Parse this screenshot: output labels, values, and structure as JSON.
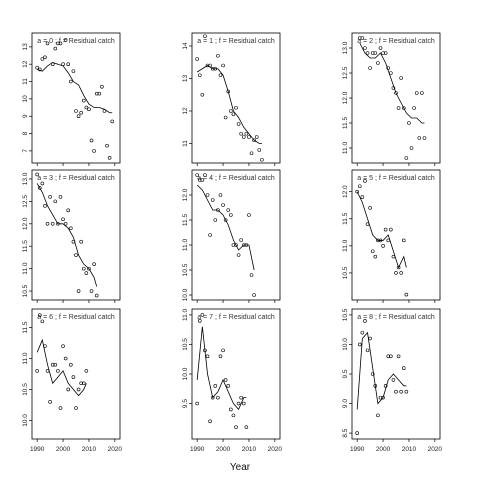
{
  "xlabel": "Year",
  "chart_data": [
    {
      "type": "scatter",
      "title": "a = 0  ;  f = Residual catch",
      "xlim": [
        1988,
        2022
      ],
      "ylim": [
        6.3,
        13.8
      ],
      "yticks": [
        7,
        8,
        9,
        10,
        11,
        12,
        13
      ],
      "points": [
        [
          1990,
          11.8
        ],
        [
          1991,
          11.7
        ],
        [
          1992,
          12.3
        ],
        [
          1993,
          12.4
        ],
        [
          1994,
          13.2
        ],
        [
          1996,
          12.0
        ],
        [
          1997,
          12.9
        ],
        [
          1998,
          13.2
        ],
        [
          1999,
          13.2
        ],
        [
          2000,
          12.0
        ],
        [
          2001,
          13.4
        ],
        [
          2002,
          12.0
        ],
        [
          2003,
          11.0
        ],
        [
          2004,
          11.6
        ],
        [
          2005,
          9.3
        ],
        [
          2006,
          9.0
        ],
        [
          2007,
          9.2
        ],
        [
          2008,
          9.9
        ],
        [
          2009,
          9.5
        ],
        [
          2010,
          9.4
        ],
        [
          2011,
          7.6
        ],
        [
          2012,
          7.0
        ],
        [
          2013,
          10.3
        ],
        [
          2014,
          10.3
        ],
        [
          2015,
          10.7
        ],
        [
          2016,
          9.3
        ],
        [
          2017,
          7.3
        ],
        [
          2018,
          6.6
        ],
        [
          2019,
          8.7
        ]
      ],
      "fit": [
        [
          1990,
          11.7
        ],
        [
          1992,
          11.6
        ],
        [
          1994,
          11.9
        ],
        [
          1996,
          12.1
        ],
        [
          1998,
          12.0
        ],
        [
          2000,
          11.9
        ],
        [
          2002,
          11.5
        ],
        [
          2004,
          11.0
        ],
        [
          2006,
          10.8
        ],
        [
          2008,
          10.2
        ],
        [
          2010,
          9.7
        ],
        [
          2012,
          9.5
        ],
        [
          2014,
          9.5
        ],
        [
          2016,
          9.4
        ],
        [
          2018,
          9.2
        ],
        [
          2019,
          9.2
        ]
      ]
    },
    {
      "type": "scatter",
      "title": "a = 1  ;  f = Residual catch",
      "xlim": [
        1988,
        2022
      ],
      "ylim": [
        10.4,
        14.4
      ],
      "yticks": [
        11,
        12,
        13,
        14
      ],
      "points": [
        [
          1990,
          13.6
        ],
        [
          1991,
          13.1
        ],
        [
          1992,
          12.5
        ],
        [
          1993,
          14.3
        ],
        [
          1994,
          13.4
        ],
        [
          1995,
          13.4
        ],
        [
          1996,
          13.3
        ],
        [
          1997,
          13.3
        ],
        [
          1998,
          13.7
        ],
        [
          1999,
          13.1
        ],
        [
          2000,
          13.4
        ],
        [
          2001,
          11.8
        ],
        [
          2002,
          12.6
        ],
        [
          2003,
          12.0
        ],
        [
          2004,
          11.9
        ],
        [
          2005,
          12.1
        ],
        [
          2006,
          11.6
        ],
        [
          2007,
          11.3
        ],
        [
          2008,
          11.2
        ],
        [
          2009,
          11.3
        ],
        [
          2010,
          11.2
        ],
        [
          2011,
          10.7
        ],
        [
          2012,
          11.1
        ],
        [
          2013,
          11.2
        ],
        [
          2014,
          10.8
        ],
        [
          2015,
          10.5
        ]
      ],
      "fit": [
        [
          1990,
          13.2
        ],
        [
          1992,
          13.3
        ],
        [
          1994,
          13.4
        ],
        [
          1996,
          13.3
        ],
        [
          1998,
          13.3
        ],
        [
          2000,
          13.1
        ],
        [
          2002,
          12.6
        ],
        [
          2004,
          12.0
        ],
        [
          2006,
          11.8
        ],
        [
          2008,
          11.5
        ],
        [
          2010,
          11.3
        ],
        [
          2012,
          11.1
        ],
        [
          2014,
          11.0
        ],
        [
          2015,
          11.0
        ]
      ]
    },
    {
      "type": "scatter",
      "title": "a = 2  ;  f = Residual catch",
      "xlim": [
        1988,
        2022
      ],
      "ylim": [
        10.7,
        13.3
      ],
      "yticks": [
        11.0,
        11.5,
        12.0,
        12.5,
        13.0
      ],
      "points": [
        [
          1991,
          13.2
        ],
        [
          1992,
          13.2
        ],
        [
          1993,
          13.0
        ],
        [
          1994,
          12.9
        ],
        [
          1995,
          12.6
        ],
        [
          1996,
          12.9
        ],
        [
          1997,
          12.9
        ],
        [
          1998,
          12.7
        ],
        [
          1999,
          13.0
        ],
        [
          2000,
          12.9
        ],
        [
          2001,
          12.9
        ],
        [
          2002,
          12.6
        ],
        [
          2003,
          12.5
        ],
        [
          2004,
          12.2
        ],
        [
          2005,
          12.1
        ],
        [
          2006,
          11.8
        ],
        [
          2007,
          12.4
        ],
        [
          2008,
          11.8
        ],
        [
          2009,
          10.8
        ],
        [
          2010,
          11.5
        ],
        [
          2011,
          11.0
        ],
        [
          2012,
          11.8
        ],
        [
          2013,
          12.1
        ],
        [
          2014,
          11.2
        ],
        [
          2015,
          12.1
        ],
        [
          2016,
          11.2
        ]
      ],
      "fit": [
        [
          1991,
          13.1
        ],
        [
          1993,
          12.9
        ],
        [
          1995,
          12.8
        ],
        [
          1997,
          12.8
        ],
        [
          1999,
          12.9
        ],
        [
          2001,
          12.7
        ],
        [
          2003,
          12.4
        ],
        [
          2005,
          12.1
        ],
        [
          2007,
          11.9
        ],
        [
          2009,
          11.7
        ],
        [
          2011,
          11.6
        ],
        [
          2013,
          11.6
        ],
        [
          2015,
          11.5
        ],
        [
          2016,
          11.5
        ]
      ]
    },
    {
      "type": "scatter",
      "title": "a = 3  ;  f = Residual catch",
      "xlim": [
        1988,
        2022
      ],
      "ylim": [
        10.3,
        13.2
      ],
      "yticks": [
        10.5,
        11.0,
        11.5,
        12.0,
        12.5,
        13.0
      ],
      "points": [
        [
          1990,
          13.1
        ],
        [
          1991,
          12.8
        ],
        [
          1992,
          12.9
        ],
        [
          1993,
          12.4
        ],
        [
          1994,
          12.0
        ],
        [
          1995,
          12.6
        ],
        [
          1996,
          12.0
        ],
        [
          1997,
          12.5
        ],
        [
          1998,
          12.0
        ],
        [
          1999,
          12.6
        ],
        [
          2000,
          12.1
        ],
        [
          2001,
          12.0
        ],
        [
          2002,
          12.3
        ],
        [
          2003,
          11.9
        ],
        [
          2004,
          11.6
        ],
        [
          2005,
          11.3
        ],
        [
          2006,
          10.5
        ],
        [
          2007,
          11.6
        ],
        [
          2008,
          11.0
        ],
        [
          2009,
          10.9
        ],
        [
          2010,
          11.0
        ],
        [
          2011,
          10.5
        ],
        [
          2012,
          11.1
        ],
        [
          2013,
          10.4
        ]
      ],
      "fit": [
        [
          1990,
          12.9
        ],
        [
          1992,
          12.7
        ],
        [
          1994,
          12.4
        ],
        [
          1996,
          12.2
        ],
        [
          1998,
          12.0
        ],
        [
          2000,
          12.0
        ],
        [
          2002,
          11.9
        ],
        [
          2004,
          11.7
        ],
        [
          2006,
          11.3
        ],
        [
          2008,
          11.1
        ],
        [
          2010,
          11.0
        ],
        [
          2012,
          10.8
        ],
        [
          2013,
          10.6
        ]
      ]
    },
    {
      "type": "scatter",
      "title": "a = 4  ;  f = Residual catch",
      "xlim": [
        1988,
        2022
      ],
      "ylim": [
        9.9,
        12.5
      ],
      "yticks": [
        10.0,
        10.5,
        11.0,
        11.5,
        12.0
      ],
      "points": [
        [
          1990,
          12.4
        ],
        [
          1991,
          12.3
        ],
        [
          1992,
          12.3
        ],
        [
          1993,
          12.4
        ],
        [
          1994,
          12.0
        ],
        [
          1995,
          11.2
        ],
        [
          1996,
          11.9
        ],
        [
          1997,
          11.5
        ],
        [
          1998,
          11.7
        ],
        [
          1999,
          12.0
        ],
        [
          2000,
          11.8
        ],
        [
          2001,
          11.5
        ],
        [
          2002,
          11.7
        ],
        [
          2003,
          11.6
        ],
        [
          2004,
          11.0
        ],
        [
          2005,
          11.0
        ],
        [
          2006,
          10.8
        ],
        [
          2007,
          11.1
        ],
        [
          2008,
          11.0
        ],
        [
          2009,
          11.0
        ],
        [
          2010,
          11.6
        ],
        [
          2011,
          10.4
        ],
        [
          2012,
          10.0
        ]
      ],
      "fit": [
        [
          1990,
          12.2
        ],
        [
          1992,
          12.1
        ],
        [
          1994,
          11.9
        ],
        [
          1996,
          11.7
        ],
        [
          1998,
          11.7
        ],
        [
          2000,
          11.6
        ],
        [
          2002,
          11.4
        ],
        [
          2004,
          11.1
        ],
        [
          2006,
          10.9
        ],
        [
          2008,
          11.0
        ],
        [
          2010,
          11.0
        ],
        [
          2012,
          10.5
        ]
      ]
    },
    {
      "type": "scatter",
      "title": "a = 5  ;  f = Residual catch",
      "xlim": [
        1988,
        2022
      ],
      "ylim": [
        10.0,
        12.4
      ],
      "yticks": [
        10.5,
        11.0,
        11.5,
        12.0
      ],
      "points": [
        [
          1990,
          12.0
        ],
        [
          1991,
          12.1
        ],
        [
          1992,
          11.9
        ],
        [
          1993,
          12.2
        ],
        [
          1994,
          11.4
        ],
        [
          1995,
          11.7
        ],
        [
          1996,
          10.9
        ],
        [
          1997,
          10.8
        ],
        [
          1998,
          11.1
        ],
        [
          1999,
          11.1
        ],
        [
          2000,
          11.0
        ],
        [
          2001,
          11.3
        ],
        [
          2002,
          11.1
        ],
        [
          2003,
          11.3
        ],
        [
          2004,
          10.8
        ],
        [
          2005,
          10.5
        ],
        [
          2006,
          10.6
        ],
        [
          2007,
          10.5
        ],
        [
          2008,
          11.1
        ],
        [
          2009,
          10.1
        ]
      ],
      "fit": [
        [
          1990,
          12.0
        ],
        [
          1992,
          11.8
        ],
        [
          1994,
          11.5
        ],
        [
          1996,
          11.2
        ],
        [
          1998,
          11.1
        ],
        [
          2000,
          11.1
        ],
        [
          2002,
          11.2
        ],
        [
          2004,
          10.9
        ],
        [
          2006,
          10.6
        ],
        [
          2008,
          10.8
        ],
        [
          2009,
          10.6
        ]
      ]
    },
    {
      "type": "scatter",
      "title": "a = 6  ;  f = Residual catch",
      "xlim": [
        1988,
        2022
      ],
      "ylim": [
        9.7,
        11.8
      ],
      "yticks": [
        10.0,
        10.5,
        11.0,
        11.5
      ],
      "points": [
        [
          1990,
          10.8
        ],
        [
          1991,
          11.7
        ],
        [
          1992,
          11.6
        ],
        [
          1993,
          11.2
        ],
        [
          1994,
          10.8
        ],
        [
          1995,
          10.3
        ],
        [
          1996,
          10.9
        ],
        [
          1997,
          10.9
        ],
        [
          1998,
          10.8
        ],
        [
          1999,
          10.2
        ],
        [
          2000,
          11.2
        ],
        [
          2001,
          11.0
        ],
        [
          2002,
          10.5
        ],
        [
          2003,
          10.9
        ],
        [
          2004,
          10.7
        ],
        [
          2005,
          10.2
        ],
        [
          2006,
          10.5
        ],
        [
          2007,
          10.6
        ],
        [
          2008,
          10.6
        ],
        [
          2009,
          10.8
        ]
      ],
      "fit": [
        [
          1990,
          11.1
        ],
        [
          1992,
          11.3
        ],
        [
          1994,
          10.9
        ],
        [
          1996,
          10.6
        ],
        [
          1998,
          10.7
        ],
        [
          2000,
          10.8
        ],
        [
          2002,
          10.6
        ],
        [
          2004,
          10.5
        ],
        [
          2006,
          10.4
        ],
        [
          2008,
          10.5
        ],
        [
          2009,
          10.6
        ]
      ]
    },
    {
      "type": "scatter",
      "title": "a = 7  ;  f = Residual catch",
      "xlim": [
        1988,
        2022
      ],
      "ylim": [
        8.9,
        11.1
      ],
      "yticks": [
        9.5,
        10.0,
        10.5,
        11.0
      ],
      "points": [
        [
          1990,
          9.5
        ],
        [
          1991,
          10.9
        ],
        [
          1992,
          11.0
        ],
        [
          1993,
          10.4
        ],
        [
          1994,
          10.3
        ],
        [
          1995,
          9.2
        ],
        [
          1996,
          9.6
        ],
        [
          1997,
          9.8
        ],
        [
          1998,
          9.6
        ],
        [
          1999,
          10.3
        ],
        [
          2000,
          10.4
        ],
        [
          2001,
          9.9
        ],
        [
          2002,
          9.8
        ],
        [
          2003,
          9.4
        ],
        [
          2004,
          9.3
        ],
        [
          2005,
          9.1
        ],
        [
          2006,
          9.5
        ],
        [
          2007,
          9.6
        ],
        [
          2008,
          9.5
        ],
        [
          2009,
          9.1
        ]
      ],
      "fit": [
        [
          1990,
          9.9
        ],
        [
          1992,
          10.8
        ],
        [
          1994,
          10.0
        ],
        [
          1996,
          9.6
        ],
        [
          1998,
          9.7
        ],
        [
          2000,
          9.9
        ],
        [
          2002,
          9.7
        ],
        [
          2004,
          9.5
        ],
        [
          2006,
          9.4
        ],
        [
          2008,
          9.6
        ],
        [
          2009,
          9.6
        ]
      ]
    },
    {
      "type": "scatter",
      "title": "a = 8  ;  f = Residual catch",
      "xlim": [
        1988,
        2022
      ],
      "ylim": [
        8.4,
        10.6
      ],
      "yticks": [
        8.5,
        9.0,
        9.5,
        10.0,
        10.5
      ],
      "points": [
        [
          1990,
          8.5
        ],
        [
          1991,
          10.0
        ],
        [
          1992,
          10.2
        ],
        [
          1993,
          10.4
        ],
        [
          1994,
          9.9
        ],
        [
          1995,
          10.1
        ],
        [
          1996,
          9.5
        ],
        [
          1997,
          9.3
        ],
        [
          1998,
          8.8
        ],
        [
          1999,
          9.1
        ],
        [
          2000,
          9.1
        ],
        [
          2001,
          9.3
        ],
        [
          2002,
          9.8
        ],
        [
          2003,
          9.8
        ],
        [
          2004,
          9.4
        ],
        [
          2005,
          9.2
        ],
        [
          2006,
          9.8
        ],
        [
          2007,
          9.2
        ],
        [
          2008,
          9.6
        ],
        [
          2009,
          9.2
        ]
      ],
      "fit": [
        [
          1990,
          8.9
        ],
        [
          1992,
          10.1
        ],
        [
          1994,
          10.2
        ],
        [
          1996,
          9.6
        ],
        [
          1998,
          9.0
        ],
        [
          2000,
          9.1
        ],
        [
          2002,
          9.4
        ],
        [
          2004,
          9.5
        ],
        [
          2006,
          9.4
        ],
        [
          2008,
          9.3
        ],
        [
          2009,
          9.3
        ]
      ]
    }
  ]
}
